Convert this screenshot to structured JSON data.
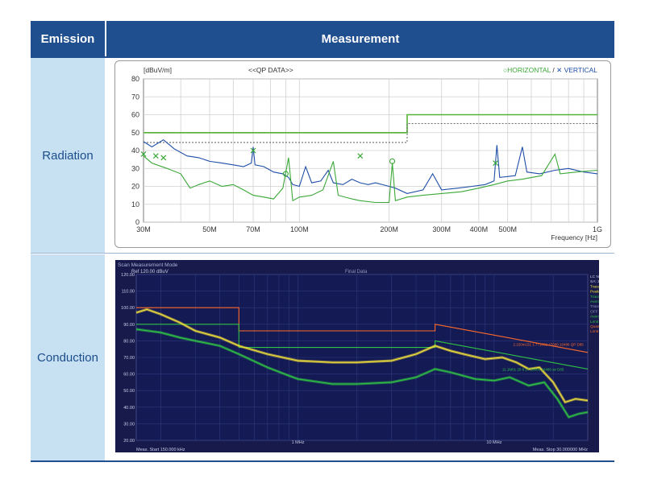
{
  "table": {
    "headers": {
      "emission": "Emission",
      "measurement": "Measurement"
    },
    "rows": [
      {
        "label": "Radiation"
      },
      {
        "label": "Conduction"
      }
    ]
  },
  "colors": {
    "header_bg": "#1f4f8f",
    "label_bg": "#c7e1f2",
    "label_text": "#1c4d8c",
    "horizontal": "#3aa837",
    "vertical": "#1f4ea8",
    "limit_green": "#55b236"
  },
  "chart_data": [
    {
      "type": "line",
      "ylabel": "[dBuV/m]",
      "annotation": "<<QP DATA>>",
      "xlabel": "Frequency [Hz]",
      "x_scale": "log",
      "xlim_hz": [
        30000000,
        1000000000
      ],
      "ylim": [
        0,
        80
      ],
      "yticks": [
        0,
        10,
        20,
        30,
        40,
        50,
        60,
        70,
        80
      ],
      "xticks": [
        {
          "hz": 30000000,
          "label": "30M"
        },
        {
          "hz": 50000000,
          "label": "50M"
        },
        {
          "hz": 70000000,
          "label": "70M"
        },
        {
          "hz": 100000000,
          "label": "100M"
        },
        {
          "hz": 200000000,
          "label": "200M"
        },
        {
          "hz": 300000000,
          "label": "300M"
        },
        {
          "hz": 400000000,
          "label": "400M"
        },
        {
          "hz": 500000000,
          "label": "500M"
        },
        {
          "hz": 1000000000,
          "label": "1G"
        }
      ],
      "legend": {
        "horizontal": "HORIZONTAL",
        "separator": "/",
        "vertical": "VERTICAL",
        "placement": "top-right"
      },
      "limit": [
        [
          30000000,
          50
        ],
        [
          230000000,
          50
        ],
        [
          230000000,
          60
        ],
        [
          1000000000,
          60
        ]
      ],
      "limit_dashed": [
        [
          30000000,
          44.5
        ],
        [
          230000000,
          44.5
        ],
        [
          230000000,
          55
        ],
        [
          1000000000,
          55
        ]
      ],
      "series": [
        {
          "name": "VERTICAL",
          "points": [
            [
              30000000,
              45
            ],
            [
              32000000,
              42
            ],
            [
              35000000,
              46
            ],
            [
              38000000,
              41
            ],
            [
              42000000,
              37
            ],
            [
              46000000,
              36
            ],
            [
              50000000,
              34
            ],
            [
              55000000,
              33
            ],
            [
              60000000,
              32
            ],
            [
              65000000,
              31
            ],
            [
              69000000,
              33
            ],
            [
              70000000,
              42
            ],
            [
              71000000,
              32
            ],
            [
              76000000,
              31
            ],
            [
              82000000,
              28
            ],
            [
              88000000,
              27
            ],
            [
              92000000,
              25
            ],
            [
              95000000,
              21
            ],
            [
              100000000,
              20
            ],
            [
              105000000,
              31
            ],
            [
              110000000,
              22
            ],
            [
              118000000,
              23
            ],
            [
              125000000,
              29
            ],
            [
              130000000,
              22
            ],
            [
              140000000,
              21
            ],
            [
              150000000,
              24
            ],
            [
              160000000,
              22
            ],
            [
              170000000,
              21
            ],
            [
              180000000,
              22
            ],
            [
              200000000,
              20
            ],
            [
              210000000,
              19
            ],
            [
              230000000,
              16
            ],
            [
              260000000,
              18
            ],
            [
              280000000,
              27
            ],
            [
              300000000,
              18
            ],
            [
              340000000,
              19
            ],
            [
              380000000,
              20
            ],
            [
              420000000,
              21
            ],
            [
              450000000,
              23
            ],
            [
              460000000,
              43
            ],
            [
              470000000,
              25
            ],
            [
              530000000,
              26
            ],
            [
              560000000,
              42
            ],
            [
              580000000,
              28
            ],
            [
              640000000,
              27
            ],
            [
              720000000,
              29
            ],
            [
              800000000,
              30
            ],
            [
              900000000,
              28
            ],
            [
              1000000000,
              27
            ]
          ]
        },
        {
          "name": "HORIZONTAL",
          "points": [
            [
              30000000,
              37
            ],
            [
              32000000,
              33
            ],
            [
              36000000,
              30
            ],
            [
              40000000,
              27
            ],
            [
              43000000,
              19
            ],
            [
              46000000,
              21
            ],
            [
              50000000,
              23
            ],
            [
              55000000,
              20
            ],
            [
              60000000,
              21
            ],
            [
              65000000,
              18
            ],
            [
              70000000,
              15
            ],
            [
              76000000,
              14
            ],
            [
              82000000,
              13
            ],
            [
              88000000,
              19
            ],
            [
              92000000,
              36
            ],
            [
              95000000,
              12
            ],
            [
              100000000,
              14
            ],
            [
              110000000,
              15
            ],
            [
              120000000,
              18
            ],
            [
              130000000,
              34
            ],
            [
              135000000,
              15
            ],
            [
              150000000,
              13
            ],
            [
              160000000,
              12
            ],
            [
              180000000,
              11
            ],
            [
              200000000,
              11
            ],
            [
              205000000,
              33
            ],
            [
              210000000,
              12
            ],
            [
              230000000,
              14
            ],
            [
              260000000,
              15
            ],
            [
              300000000,
              16
            ],
            [
              350000000,
              17
            ],
            [
              400000000,
              19
            ],
            [
              450000000,
              21
            ],
            [
              500000000,
              23
            ],
            [
              560000000,
              24
            ],
            [
              650000000,
              26
            ],
            [
              720000000,
              38
            ],
            [
              750000000,
              27
            ],
            [
              850000000,
              28
            ],
            [
              1000000000,
              29
            ]
          ]
        }
      ],
      "markers": [
        {
          "hz": 30000000,
          "y": 38,
          "label": "V"
        },
        {
          "hz": 33000000,
          "y": 37,
          "label": "V"
        },
        {
          "hz": 35000000,
          "y": 36,
          "label": "V"
        },
        {
          "hz": 70000000,
          "y": 40,
          "label": "V"
        },
        {
          "hz": 160000000,
          "y": 37,
          "label": "V"
        },
        {
          "hz": 455000000,
          "y": 33,
          "label": "V"
        },
        {
          "hz": 90000000,
          "y": 27,
          "label": "H"
        },
        {
          "hz": 205000000,
          "y": 34,
          "label": "H"
        }
      ]
    },
    {
      "type": "line",
      "title": "Scan Measurement Mode",
      "reference_level": "Ref 120.00 dBuV",
      "annotation": "Final Data",
      "x_scale": "log",
      "xlim_hz": [
        150000,
        30000000
      ],
      "ylim": [
        20,
        120
      ],
      "yticks": [
        20,
        30,
        40,
        50,
        60,
        70,
        80,
        90,
        100,
        110,
        120
      ],
      "ytick_labels": [
        "20.00",
        "30.00",
        "40.00",
        "50.00",
        "60.00",
        "70.00",
        "80.00",
        "90.00",
        "100.00",
        "110.00",
        "120.00"
      ],
      "xticks": [
        {
          "hz": 1000000,
          "label": "1 MHz"
        },
        {
          "hz": 10000000,
          "label": "10 MHz"
        }
      ],
      "meas_start": {
        "label": "Meas. Start",
        "value": "150.000 kHz"
      },
      "meas_stop": {
        "label": "Meas. Stop",
        "value": "30.000000 MHz"
      },
      "side_legend": [
        "LC Nest",
        "SA: 20",
        "Trace1",
        "Peak",
        "Trace2",
        "Average",
        "Trace3",
        "OFF",
        "Average",
        "Limit Def",
        "Quasi-Pk",
        "Limit Def"
      ],
      "limit_qp": [
        [
          150000,
          100
        ],
        [
          500000,
          100
        ],
        [
          500000,
          86
        ],
        [
          5000000,
          86
        ],
        [
          5000000,
          90
        ],
        [
          30000000,
          73
        ]
      ],
      "limit_avg": [
        [
          150000,
          90
        ],
        [
          500000,
          90
        ],
        [
          500000,
          76
        ],
        [
          5000000,
          76
        ],
        [
          5000000,
          80
        ],
        [
          30000000,
          63
        ]
      ],
      "series": [
        {
          "name": "Peak",
          "color": "#f4e23a",
          "points": [
            [
              150000,
              97
            ],
            [
              170000,
              99
            ],
            [
              200000,
              96
            ],
            [
              250000,
              91
            ],
            [
              300000,
              86
            ],
            [
              400000,
              82
            ],
            [
              500000,
              77
            ],
            [
              700000,
              72
            ],
            [
              1000000,
              68
            ],
            [
              1500000,
              67
            ],
            [
              2000000,
              67
            ],
            [
              3000000,
              68
            ],
            [
              4000000,
              72
            ],
            [
              5000000,
              77
            ],
            [
              6000000,
              74
            ],
            [
              7000000,
              72
            ],
            [
              9000000,
              69
            ],
            [
              11000000,
              70
            ],
            [
              13000000,
              67
            ],
            [
              15000000,
              63
            ],
            [
              17000000,
              64
            ],
            [
              20000000,
              55
            ],
            [
              23000000,
              43
            ],
            [
              26000000,
              45
            ],
            [
              30000000,
              44
            ]
          ]
        },
        {
          "name": "Average",
          "color": "#2fc244",
          "points": [
            [
              150000,
              87
            ],
            [
              200000,
              85
            ],
            [
              250000,
              82
            ],
            [
              300000,
              80
            ],
            [
              400000,
              77
            ],
            [
              500000,
              72
            ],
            [
              700000,
              64
            ],
            [
              900000,
              59
            ],
            [
              1000000,
              57
            ],
            [
              1500000,
              54
            ],
            [
              2000000,
              54
            ],
            [
              3000000,
              55
            ],
            [
              4000000,
              58
            ],
            [
              5000000,
              63
            ],
            [
              6000000,
              61
            ],
            [
              8000000,
              57
            ],
            [
              10000000,
              56
            ],
            [
              12000000,
              58
            ],
            [
              15000000,
              53
            ],
            [
              18000000,
              55
            ],
            [
              21000000,
              45
            ],
            [
              24000000,
              34
            ],
            [
              27000000,
              36
            ],
            [
              30000000,
              37
            ]
          ]
        }
      ],
      "annotations_right": [
        {
          "hz": 12500000,
          "y": 77,
          "text": "2.220m151 1.771002 47000 10486 QP D85"
        },
        {
          "hz": 11000000,
          "y": 62,
          "text": "11.1M01 20 8 17.18000 10486 av D85"
        }
      ]
    }
  ]
}
